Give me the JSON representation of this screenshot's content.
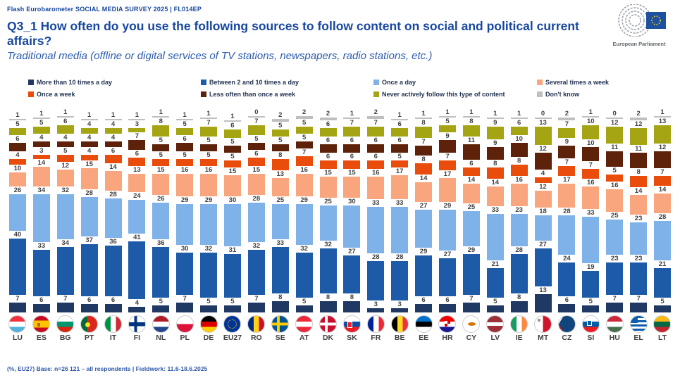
{
  "header": {
    "eyebrow": "Flash Eurobarometer SOCIAL MEDIA SURVEY 2025  |  FL014EP",
    "title": "Q3_1 How often do you use the following sources to follow content on social and political current affairs?",
    "subtitle": "Traditional media (offline or digital services of TV stations, newspapers, radio stations, etc.)",
    "logo_caption": "European Parliament"
  },
  "legend": [
    {
      "label": "More than 10 times a day",
      "color": "#1f3864"
    },
    {
      "label": "Between 2 and 10 times a day",
      "color": "#1d5ba8"
    },
    {
      "label": "Once a day",
      "color": "#7fb2e8"
    },
    {
      "label": "Several times a week",
      "color": "#f9a57d"
    },
    {
      "label": "Once a week",
      "color": "#e94c0b"
    },
    {
      "label": "Less often than once a week",
      "color": "#5e2109"
    },
    {
      "label": "Never actively follow this type of content",
      "color": "#a5a514"
    },
    {
      "label": "Don't know",
      "color": "#bfbfbf"
    }
  ],
  "chart_data": {
    "type": "bar",
    "stacked": true,
    "unit": "percent",
    "title": "Q3_1 How often do you use the following sources to follow content on social and political current affairs? — Traditional media",
    "xlabel": "Country",
    "ylabel": "% of respondents",
    "ylim": [
      0,
      100
    ],
    "grid": false,
    "legend_position": "top",
    "categories": [
      "LU",
      "ES",
      "BG",
      "PT",
      "IT",
      "FI",
      "NL",
      "PL",
      "DE",
      "EU27",
      "RO",
      "SE",
      "AT",
      "DK",
      "SK",
      "FR",
      "BE",
      "EE",
      "HR",
      "CY",
      "LV",
      "IE",
      "MT",
      "CZ",
      "SI",
      "HU",
      "EL",
      "LT"
    ],
    "series": [
      {
        "name": "More than 10 times a day",
        "color": "#1f3864",
        "values": [
          7,
          6,
          7,
          6,
          6,
          4,
          5,
          7,
          5,
          5,
          7,
          8,
          5,
          8,
          8,
          3,
          3,
          6,
          6,
          7,
          5,
          8,
          13,
          6,
          5,
          7,
          7,
          5
        ]
      },
      {
        "name": "Between 2 and 10 times a day",
        "color": "#1d5ba8",
        "values": [
          40,
          33,
          34,
          37,
          36,
          41,
          36,
          30,
          32,
          31,
          32,
          33,
          32,
          32,
          27,
          28,
          28,
          29,
          27,
          29,
          21,
          28,
          27,
          24,
          19,
          23,
          23,
          21
        ]
      },
      {
        "name": "Once a day",
        "color": "#7fb2e8",
        "values": [
          26,
          34,
          32,
          28,
          28,
          24,
          26,
          29,
          29,
          30,
          28,
          25,
          29,
          25,
          30,
          33,
          33,
          27,
          29,
          25,
          33,
          23,
          18,
          28,
          33,
          25,
          23,
          28
        ]
      },
      {
        "name": "Several times a week",
        "color": "#f9a57d",
        "values": [
          10,
          14,
          12,
          15,
          14,
          13,
          15,
          16,
          16,
          15,
          15,
          13,
          16,
          15,
          15,
          16,
          17,
          14,
          17,
          14,
          14,
          16,
          12,
          17,
          16,
          16,
          14,
          14
        ]
      },
      {
        "name": "Once a week",
        "color": "#e94c0b",
        "values": [
          4,
          3,
          5,
          4,
          6,
          6,
          5,
          5,
          5,
          5,
          6,
          8,
          7,
          6,
          6,
          6,
          5,
          8,
          7,
          6,
          8,
          8,
          4,
          7,
          7,
          5,
          8,
          7
        ]
      },
      {
        "name": "Less often than once a week",
        "color": "#5e2109",
        "values": [
          6,
          4,
          4,
          4,
          4,
          7,
          5,
          6,
          5,
          5,
          5,
          5,
          5,
          6,
          6,
          6,
          6,
          7,
          9,
          11,
          9,
          10,
          12,
          9,
          10,
          11,
          11,
          12
        ]
      },
      {
        "name": "Never actively follow this type of content",
        "color": "#a5a514",
        "values": [
          5,
          5,
          6,
          4,
          4,
          3,
          8,
          5,
          7,
          6,
          7,
          5,
          5,
          6,
          7,
          7,
          6,
          8,
          5,
          8,
          9,
          6,
          13,
          7,
          10,
          12,
          12,
          13
        ]
      },
      {
        "name": "Don't know",
        "color": "#bfbfbf",
        "values": [
          1,
          1,
          1,
          1,
          1,
          1,
          1,
          1,
          1,
          1,
          0,
          2,
          2,
          2,
          1,
          2,
          1,
          1,
          1,
          1,
          1,
          1,
          0,
          2,
          1,
          0,
          2,
          1
        ]
      }
    ]
  },
  "footer": {
    "text": "(%, EU27)  Base: n=26 121 – all respondents |  Fieldwork: 11.6-18.6.2025"
  }
}
